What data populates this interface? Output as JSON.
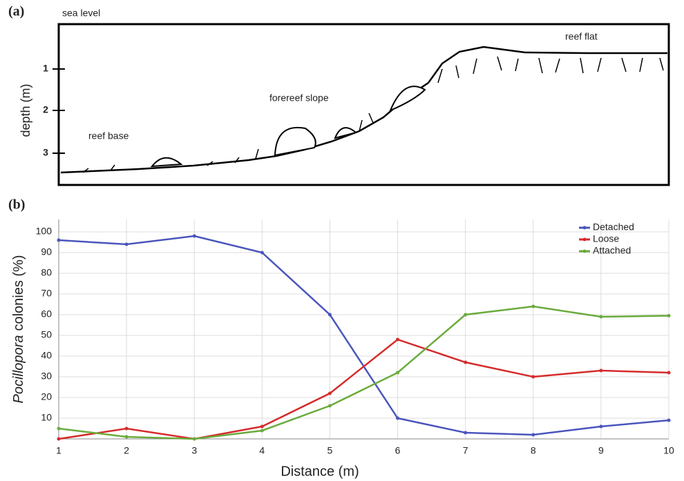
{
  "figure_a": {
    "label": "(a)",
    "sea_level": "sea level",
    "reef_flat": "reef flat",
    "forereef_slope": "forereef slope",
    "reef_base": "reef base",
    "y_label": "depth (m)",
    "depth_ticks": [
      1,
      2,
      3
    ]
  },
  "chart_data": {
    "type": "line",
    "label": "(b)",
    "x": [
      1,
      2,
      3,
      4,
      5,
      6,
      7,
      8,
      9,
      10
    ],
    "series": [
      {
        "name": "Detached",
        "color": "#4a55bd",
        "values": [
          96,
          94,
          98,
          90,
          60,
          10,
          3,
          2,
          6,
          9
        ]
      },
      {
        "name": "Loose",
        "color": "#d62b2b",
        "values": [
          0,
          5,
          0,
          6,
          22,
          48,
          37,
          30,
          33,
          32
        ]
      },
      {
        "name": "Attached",
        "color": "#6aab3c",
        "values": [
          5,
          1,
          0,
          4,
          16,
          32,
          60,
          64,
          59,
          59.5
        ]
      }
    ],
    "y_label_italic": "Pocillopora",
    "y_label": "colonies (%)",
    "x_label": "Distance (m)",
    "xlim": [
      1,
      10
    ],
    "xticks": [
      1,
      2,
      3,
      4,
      5,
      6,
      7,
      8,
      9,
      10
    ],
    "ylim": [
      0,
      106
    ],
    "yticks": [
      10,
      20,
      30,
      40,
      50,
      60,
      70,
      80,
      90,
      100
    ],
    "grid": true,
    "legend": "top-right"
  }
}
